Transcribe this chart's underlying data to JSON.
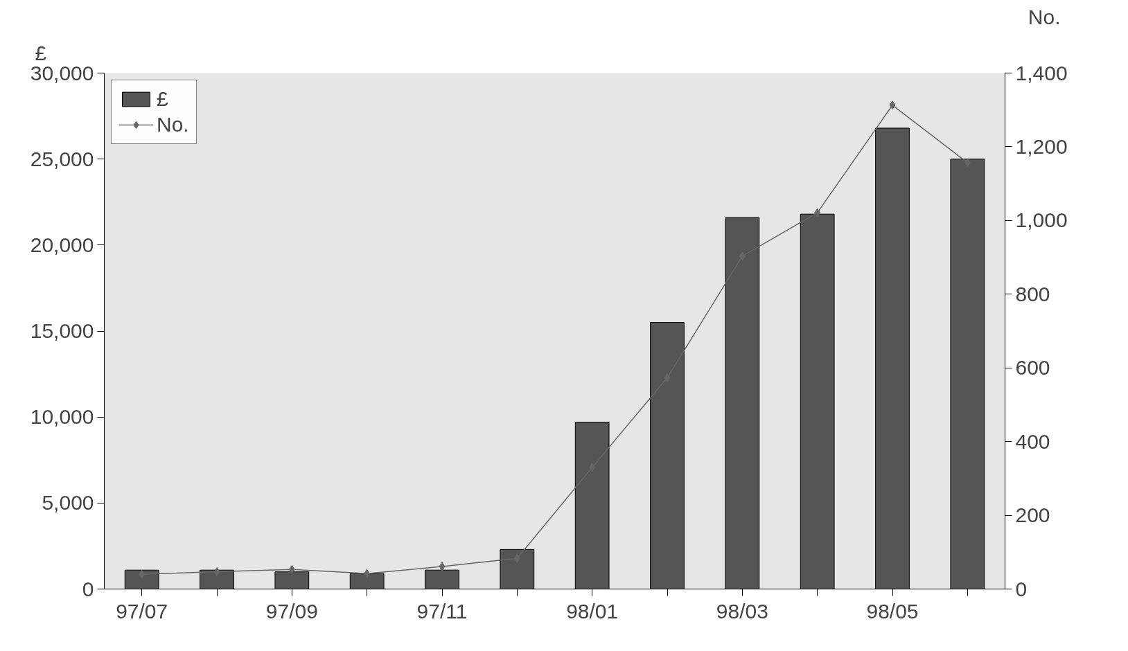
{
  "chart_data": {
    "type": "bar",
    "ylabel": "£",
    "y2label": "No.",
    "categories": [
      "97/07",
      null,
      "97/09",
      null,
      "97/11",
      null,
      "98/01",
      null,
      "98/03",
      null,
      "98/05",
      null
    ],
    "series": [
      {
        "name": "£",
        "color": "#555555",
        "values": [
          1100,
          1100,
          1000,
          900,
          1100,
          2300,
          9700,
          15500,
          21600,
          21800,
          26800,
          25000
        ]
      },
      {
        "name": "No.",
        "type": "line",
        "axis": "y2",
        "color": "#666666",
        "marker": "diamond",
        "values": [
          40,
          47,
          53,
          42,
          61,
          83,
          330,
          573,
          903,
          1021,
          1313,
          1157
        ]
      }
    ],
    "ylim": [
      0,
      30000
    ],
    "yticks": [
      {
        "value": 0,
        "label": "0"
      },
      {
        "value": 5000,
        "label": "5,000"
      },
      {
        "value": 10000,
        "label": "10,000"
      },
      {
        "value": 15000,
        "label": "15,000"
      },
      {
        "value": 20000,
        "label": "20,000"
      },
      {
        "value": 25000,
        "label": "25,000"
      },
      {
        "value": 30000,
        "label": "30,000"
      }
    ],
    "y2lim": [
      0,
      1400
    ],
    "y2ticks": [
      0,
      200,
      400,
      600,
      800,
      {
        "value": 1000,
        "label": "1,000"
      },
      {
        "value": 1200,
        "label": "1,200"
      },
      {
        "value": 1400,
        "label": "1,400"
      }
    ],
    "grid": false,
    "legend": "top left"
  }
}
